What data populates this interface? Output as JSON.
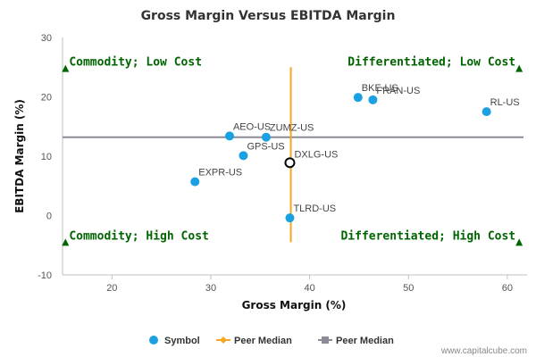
{
  "chart_data": {
    "type": "scatter",
    "title": "Gross Margin Versus EBITDA Margin",
    "xlabel": "Gross Margin (%)",
    "ylabel": "EBITDA Margin (%)",
    "xlim": [
      15,
      62
    ],
    "ylim": [
      -10,
      30
    ],
    "x_ticks": [
      20,
      30,
      40,
      50,
      60
    ],
    "y_ticks": [
      -10,
      0,
      10,
      20,
      30
    ],
    "grid": false,
    "points": [
      {
        "label": "BKE-US",
        "x": 44.9,
        "y": 19.9
      },
      {
        "label": "FRAN-US",
        "x": 46.4,
        "y": 19.5
      },
      {
        "label": "RL-US",
        "x": 57.9,
        "y": 17.5
      },
      {
        "label": "AEO-US",
        "x": 31.9,
        "y": 13.4
      },
      {
        "label": "ZUMZ-US",
        "x": 35.6,
        "y": 13.2
      },
      {
        "label": "GPS-US",
        "x": 33.3,
        "y": 10.1
      },
      {
        "label": "EXPR-US",
        "x": 28.4,
        "y": 5.7
      },
      {
        "label": "TLRD-US",
        "x": 38.0,
        "y": -0.4
      }
    ],
    "highlight_point": {
      "label": "DXLG-US",
      "x": 38.0,
      "y": 8.9
    },
    "peer_median_x": 38.1,
    "peer_median_y": 13.2,
    "peer_median_x_range": [
      -4.5,
      25
    ],
    "quadrants": [
      {
        "label": "Commodity; Low Cost",
        "x": 15.3,
        "y": 24.8
      },
      {
        "label": "Differentiated; Low Cost",
        "x": 61.2,
        "y": 24.8
      },
      {
        "label": "Commodity; High Cost",
        "x": 15.3,
        "y": -4.5
      },
      {
        "label": "Differentiated; High Cost",
        "x": 61.2,
        "y": -4.5
      }
    ],
    "legend": {
      "position": "bottom",
      "items": [
        {
          "label": "Symbol",
          "marker": "circle",
          "color": "#1ba1e2"
        },
        {
          "label": "Peer Median",
          "marker": "diamond-line",
          "color": "#f5a623"
        },
        {
          "label": "Peer Median",
          "marker": "square-line",
          "color": "#8c8c98"
        }
      ]
    },
    "colors": {
      "symbol": "#1ba1e2",
      "median_x_line": "#f5a623",
      "median_y_line": "#8c8c98",
      "quadrant_text": "#006400",
      "quadrant_marker": "#006400"
    }
  },
  "credit": "www.capitalcube.com"
}
